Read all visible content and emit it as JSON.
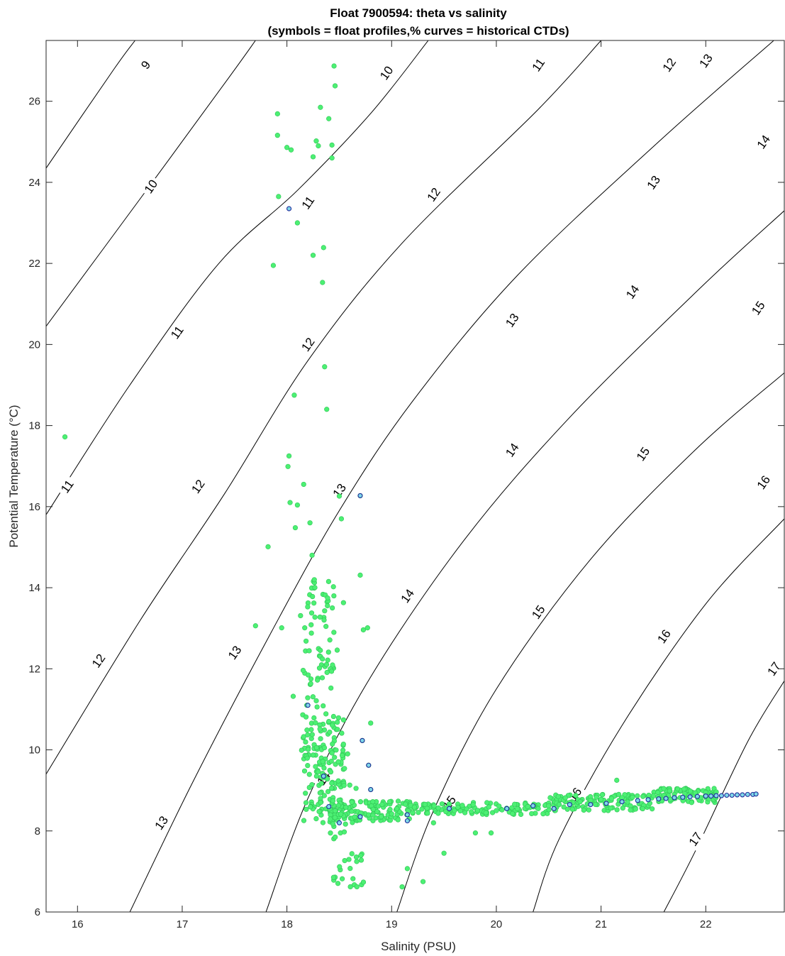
{
  "chart_data": {
    "type": "scatter",
    "title": "Float 7900594: theta vs salinity",
    "subtitle": "(symbols = float profiles,% curves = historical CTDs)",
    "xlabel": "Salinity (PSU)",
    "ylabel": "Potential Temperature (°C)",
    "xlim": [
      15.7,
      22.75
    ],
    "ylim": [
      6,
      27.5
    ],
    "xticks": [
      "16",
      "17",
      "18",
      "19",
      "20",
      "21",
      "22"
    ],
    "yticks": [
      "6",
      "8",
      "10",
      "12",
      "14",
      "16",
      "18",
      "20",
      "22",
      "24",
      "26"
    ],
    "grid": false,
    "contours": {
      "description": "density contours",
      "lines": [
        {
          "level": "9",
          "points": [
            [
              15.7,
              24.35
            ],
            [
              16.35,
              26.8
            ],
            [
              16.55,
              27.5
            ]
          ],
          "label_at": [
            16.35,
            26.9
          ]
        },
        {
          "level": "10",
          "points": [
            [
              15.7,
              20.45
            ],
            [
              16.6,
              23.6
            ],
            [
              17.45,
              26.6
            ],
            [
              17.7,
              27.5
            ]
          ],
          "label_at": [
            16.7,
            23.85
          ]
        },
        {
          "level": "10",
          "points": [
            [
              17.7,
              27.5
            ]
          ],
          "label_at": [
            18.95,
            26.7
          ]
        },
        {
          "level": "11",
          "points": [
            [
              15.7,
              15.8
            ],
            [
              16.5,
              19.0
            ],
            [
              17.35,
              22.0
            ],
            [
              18.1,
              23.8
            ],
            [
              18.8,
              25.7
            ],
            [
              19.35,
              27.5
            ]
          ],
          "label_at": [
            18.2,
            23.45
          ]
        },
        {
          "level": "12",
          "points": [
            [
              15.7,
              9.4
            ],
            [
              16.6,
              13.2
            ],
            [
              17.4,
              16.3
            ],
            [
              18.2,
              19.6
            ],
            [
              19.1,
              22.5
            ],
            [
              20.4,
              25.8
            ],
            [
              21.0,
              27.5
            ]
          ],
          "label_at": [
            18.2,
            19.9
          ]
        },
        {
          "level": "13",
          "points": [
            [
              16.5,
              6.0
            ],
            [
              17.1,
              9.2
            ],
            [
              17.85,
              12.9
            ],
            [
              18.5,
              15.9
            ],
            [
              19.2,
              18.6
            ],
            [
              20.2,
              21.7
            ],
            [
              21.55,
              25.0
            ],
            [
              22.65,
              27.5
            ]
          ],
          "label_at": [
            18.5,
            16.4
          ]
        },
        {
          "level": "14",
          "points": [
            [
              17.8,
              6.0
            ],
            [
              18.2,
              8.8
            ],
            [
              18.8,
              11.8
            ],
            [
              19.7,
              15.2
            ],
            [
              20.7,
              18.2
            ],
            [
              21.95,
              21.4
            ],
            [
              22.75,
              23.3
            ]
          ],
          "label_at": [
            18.35,
            9.3
          ]
        },
        {
          "level": "15",
          "points": [
            [
              19.05,
              6.0
            ],
            [
              19.4,
              8.5
            ],
            [
              20.0,
              11.5
            ],
            [
              20.9,
              14.7
            ],
            [
              21.9,
              17.4
            ],
            [
              22.75,
              19.3
            ]
          ],
          "label_at": [
            19.55,
            8.7
          ]
        },
        {
          "level": "16",
          "points": [
            [
              20.35,
              6.0
            ],
            [
              20.6,
              7.8
            ],
            [
              21.2,
              10.6
            ],
            [
              22.0,
              13.6
            ],
            [
              22.75,
              15.7
            ]
          ],
          "label_at": [
            20.75,
            8.95
          ]
        },
        {
          "level": "17",
          "points": [
            [
              21.6,
              6.0
            ],
            [
              21.9,
              7.5
            ],
            [
              22.4,
              10.2
            ],
            [
              22.75,
              11.7
            ]
          ],
          "label_at": [
            21.9,
            7.8
          ]
        }
      ],
      "extra_labels": [
        {
          "level": "9",
          "at": [
            16.65,
            26.9
          ]
        },
        {
          "level": "10",
          "at": [
            16.7,
            23.9
          ]
        },
        {
          "level": "10",
          "at": [
            18.95,
            26.7
          ]
        },
        {
          "level": "11",
          "at": [
            16.95,
            20.3
          ]
        },
        {
          "level": "11",
          "at": [
            15.9,
            16.5
          ]
        },
        {
          "level": "11",
          "at": [
            18.2,
            23.5
          ]
        },
        {
          "level": "11",
          "at": [
            20.4,
            26.9
          ]
        },
        {
          "level": "12",
          "at": [
            16.2,
            12.2
          ]
        },
        {
          "level": "12",
          "at": [
            17.15,
            16.5
          ]
        },
        {
          "level": "12",
          "at": [
            18.2,
            20.0
          ]
        },
        {
          "level": "12",
          "at": [
            19.4,
            23.7
          ]
        },
        {
          "level": "12",
          "at": [
            21.65,
            26.9
          ]
        },
        {
          "level": "13",
          "at": [
            16.8,
            8.2
          ]
        },
        {
          "level": "13",
          "at": [
            17.5,
            12.4
          ]
        },
        {
          "level": "13",
          "at": [
            18.5,
            16.4
          ]
        },
        {
          "level": "13",
          "at": [
            20.15,
            20.6
          ]
        },
        {
          "level": "13",
          "at": [
            21.5,
            24.0
          ]
        },
        {
          "level": "13",
          "at": [
            22.0,
            27.0
          ]
        },
        {
          "level": "14",
          "at": [
            18.35,
            9.3
          ]
        },
        {
          "level": "14",
          "at": [
            19.15,
            13.8
          ]
        },
        {
          "level": "14",
          "at": [
            20.15,
            17.4
          ]
        },
        {
          "level": "14",
          "at": [
            21.3,
            21.3
          ]
        },
        {
          "level": "14",
          "at": [
            22.55,
            25.0
          ]
        },
        {
          "level": "15",
          "at": [
            19.55,
            8.7
          ]
        },
        {
          "level": "15",
          "at": [
            20.4,
            13.4
          ]
        },
        {
          "level": "15",
          "at": [
            21.4,
            17.3
          ]
        },
        {
          "level": "15",
          "at": [
            22.5,
            20.9
          ]
        },
        {
          "level": "16",
          "at": [
            20.75,
            8.9
          ]
        },
        {
          "level": "16",
          "at": [
            21.6,
            12.8
          ]
        },
        {
          "level": "16",
          "at": [
            22.55,
            16.6
          ]
        },
        {
          "level": "17",
          "at": [
            21.9,
            7.8
          ]
        },
        {
          "level": "17",
          "at": [
            22.65,
            12.0
          ]
        }
      ]
    },
    "series": [
      {
        "points": [
          [
            15.88,
            17.72
          ],
          [
            17.7,
            13.06
          ],
          [
            17.82,
            15.01
          ],
          [
            17.87,
            21.95
          ],
          [
            17.91,
            25.69
          ],
          [
            17.91,
            25.16
          ],
          [
            17.92,
            23.65
          ],
          [
            17.95,
            13.01
          ],
          [
            18.0,
            24.86
          ],
          [
            18.02,
            17.25
          ],
          [
            18.01,
            16.99
          ],
          [
            18.03,
            16.1
          ],
          [
            18.04,
            24.8
          ],
          [
            18.06,
            11.32
          ],
          [
            18.07,
            18.75
          ],
          [
            18.1,
            16.04
          ],
          [
            18.08,
            15.48
          ],
          [
            18.1,
            23.0
          ],
          [
            18.13,
            13.31
          ],
          [
            18.14,
            9.99
          ],
          [
            18.16,
            16.55
          ],
          [
            18.17,
            13.01
          ],
          [
            18.19,
            11.1
          ],
          [
            18.22,
            15.6
          ],
          [
            18.24,
            14.8
          ],
          [
            18.25,
            22.2
          ],
          [
            18.25,
            24.63
          ],
          [
            18.28,
            25.02
          ],
          [
            18.3,
            24.9
          ],
          [
            18.32,
            25.85
          ],
          [
            18.34,
            21.53
          ],
          [
            18.35,
            22.39
          ],
          [
            18.36,
            19.45
          ],
          [
            18.38,
            18.4
          ],
          [
            18.4,
            25.57
          ],
          [
            18.41,
            12.71
          ],
          [
            18.43,
            24.92
          ],
          [
            18.43,
            24.6
          ],
          [
            18.45,
            26.87
          ],
          [
            18.46,
            26.38
          ],
          [
            18.48,
            12.46
          ],
          [
            18.5,
            16.26
          ],
          [
            18.52,
            15.7
          ],
          [
            18.54,
            13.63
          ],
          [
            18.55,
            9.54
          ],
          [
            18.58,
            9.9
          ],
          [
            18.6,
            9.13
          ],
          [
            18.62,
            8.71
          ],
          [
            18.66,
            9.05
          ],
          [
            18.7,
            16.27
          ],
          [
            18.7,
            14.31
          ],
          [
            18.72,
            10.23
          ],
          [
            18.73,
            12.96
          ],
          [
            18.77,
            13.01
          ],
          [
            18.78,
            9.62
          ],
          [
            18.8,
            10.66
          ],
          [
            18.8,
            9.02
          ],
          [
            18.82,
            8.72
          ],
          [
            18.9,
            8.35
          ],
          [
            19.0,
            8.42
          ],
          [
            19.05,
            8.55
          ],
          [
            19.1,
            6.62
          ],
          [
            19.15,
            7.07
          ],
          [
            19.2,
            8.45
          ],
          [
            19.3,
            6.75
          ],
          [
            19.4,
            8.2
          ],
          [
            19.5,
            7.45
          ],
          [
            19.6,
            8.5
          ],
          [
            19.7,
            8.45
          ],
          [
            19.8,
            7.95
          ],
          [
            19.9,
            8.45
          ],
          [
            19.95,
            7.95
          ],
          [
            20.0,
            8.5
          ],
          [
            20.1,
            8.55
          ],
          [
            20.2,
            8.55
          ],
          [
            20.3,
            8.6
          ],
          [
            20.4,
            8.55
          ],
          [
            20.5,
            8.62
          ],
          [
            20.6,
            8.65
          ],
          [
            20.7,
            8.7
          ],
          [
            20.8,
            8.72
          ],
          [
            20.9,
            8.75
          ],
          [
            21.0,
            8.78
          ],
          [
            21.1,
            8.8
          ],
          [
            21.15,
            9.25
          ],
          [
            21.2,
            8.82
          ],
          [
            21.3,
            8.83
          ],
          [
            21.4,
            8.85
          ],
          [
            21.5,
            8.87
          ],
          [
            21.6,
            8.88
          ],
          [
            21.7,
            8.9
          ],
          [
            21.8,
            8.92
          ],
          [
            21.9,
            8.94
          ],
          [
            22.0,
            8.95
          ],
          [
            22.1,
            8.96
          ]
        ],
        "cluster_bands": [
          {
            "s_range": [
              18.15,
              18.55
            ],
            "t_range": [
              8.2,
              10.8
            ],
            "count": 160
          },
          {
            "s_range": [
              18.15,
              18.45
            ],
            "t_range": [
              10.8,
              14.5
            ],
            "count": 70
          },
          {
            "s_range": [
              18.4,
              18.75
            ],
            "t_range": [
              6.6,
              8.4
            ],
            "count": 35
          },
          {
            "s_range": [
              18.4,
              19.2
            ],
            "t_range": [
              8.25,
              8.75
            ],
            "count": 120
          },
          {
            "s_range": [
              19.2,
              20.5
            ],
            "t_range": [
              8.4,
              8.7
            ],
            "count": 110
          },
          {
            "s_range": [
              20.5,
              21.5
            ],
            "t_range": [
              8.5,
              8.9
            ],
            "count": 110
          },
          {
            "s_range": [
              21.5,
              22.1
            ],
            "t_range": [
              8.7,
              9.05
            ],
            "count": 80
          }
        ]
      },
      {
        "points": [
          [
            18.02,
            23.35
          ],
          [
            18.2,
            11.1
          ],
          [
            18.35,
            9.35
          ],
          [
            18.4,
            8.6
          ],
          [
            18.5,
            8.2
          ],
          [
            18.7,
            8.35
          ],
          [
            18.7,
            16.27
          ],
          [
            18.72,
            10.23
          ],
          [
            18.78,
            9.62
          ],
          [
            18.8,
            9.02
          ],
          [
            19.15,
            8.4
          ],
          [
            19.15,
            8.25
          ],
          [
            19.55,
            8.55
          ],
          [
            20.1,
            8.55
          ],
          [
            20.35,
            8.62
          ],
          [
            20.55,
            8.55
          ],
          [
            20.7,
            8.65
          ],
          [
            20.9,
            8.65
          ],
          [
            21.05,
            8.68
          ],
          [
            21.2,
            8.72
          ],
          [
            21.35,
            8.75
          ],
          [
            21.45,
            8.77
          ],
          [
            21.55,
            8.79
          ],
          [
            21.62,
            8.8
          ],
          [
            21.7,
            8.82
          ],
          [
            21.78,
            8.83
          ],
          [
            21.85,
            8.84
          ],
          [
            21.92,
            8.85
          ],
          [
            22.0,
            8.86
          ],
          [
            22.05,
            8.86
          ],
          [
            22.1,
            8.87
          ],
          [
            22.15,
            8.87
          ],
          [
            22.2,
            8.88
          ],
          [
            22.25,
            8.88
          ],
          [
            22.3,
            8.89
          ],
          [
            22.35,
            8.89
          ],
          [
            22.4,
            8.9
          ],
          [
            22.45,
            8.9
          ],
          [
            22.48,
            8.91
          ]
        ]
      }
    ]
  },
  "colors": {
    "float_points": "#4cf073",
    "float_points_edge": "#2fc455",
    "profile_markers_fill": "#7fd8e8",
    "profile_markers_edge": "#1f2a9a",
    "contour_line": "#000000",
    "axis": "#262626"
  }
}
